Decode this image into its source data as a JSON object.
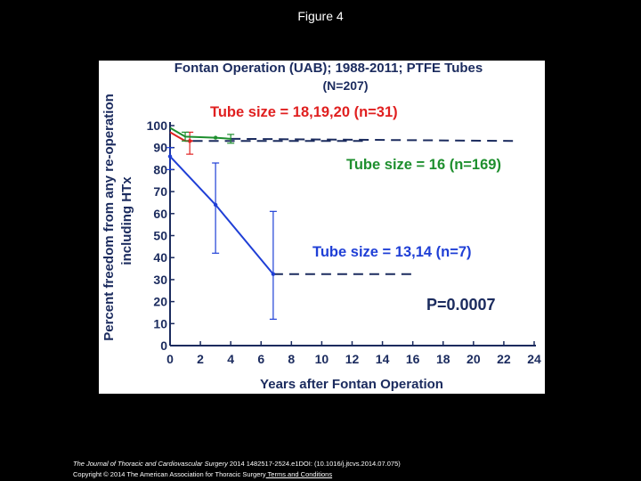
{
  "slide": {
    "title": "Figure 4"
  },
  "chart_data": {
    "type": "line",
    "title": "Fontan Operation (UAB); 1988-2011;  PTFE Tubes",
    "subtitle": "(N=207)",
    "xlabel": "Years after Fontan Operation",
    "ylabel_line1": "Percent freedom from any re-operation",
    "ylabel_line2": "including HTx",
    "xlim": [
      0,
      24
    ],
    "ylim": [
      0,
      100
    ],
    "xticks": [
      "0",
      "2",
      "4",
      "6",
      "8",
      "10",
      "12",
      "14",
      "16",
      "18",
      "20",
      "22",
      "24"
    ],
    "yticks": [
      "0",
      "10",
      "20",
      "30",
      "40",
      "50",
      "60",
      "70",
      "80",
      "90",
      "100"
    ],
    "p_value": "P=0.0007",
    "series": [
      {
        "name": "Tube size = 18,19,20 (n=31)",
        "color": "#e02020",
        "curve": [
          [
            0,
            97
          ],
          [
            0.5,
            95
          ],
          [
            1,
            93
          ],
          [
            1.5,
            93
          ]
        ],
        "points": [
          [
            1.3,
            93
          ]
        ],
        "error_bars": [
          [
            1.3,
            87,
            97
          ]
        ],
        "extension": [
          [
            1.5,
            93
          ],
          [
            13,
            93
          ]
        ]
      },
      {
        "name": "Tube size = 16 (n=169)",
        "color": "#1e8f2e",
        "curve": [
          [
            0,
            99
          ],
          [
            1,
            95
          ],
          [
            3,
            94.5
          ],
          [
            4,
            94
          ]
        ],
        "points": [
          [
            3,
            94.5
          ]
        ],
        "error_bars": [
          [
            1,
            93,
            97
          ],
          [
            4,
            92,
            96
          ]
        ],
        "extension": [
          [
            4,
            94
          ],
          [
            23,
            93
          ]
        ]
      },
      {
        "name": "Tube size = 13,14 (n=7)",
        "color": "#1f3fd6",
        "curve": [
          [
            0,
            86
          ],
          [
            3,
            64
          ],
          [
            6.8,
            32.5
          ]
        ],
        "points": [
          [
            0,
            86
          ],
          [
            3,
            64
          ],
          [
            6.8,
            32.5
          ]
        ],
        "error_bars": [
          [
            0,
            80,
            90
          ],
          [
            3,
            42,
            83
          ],
          [
            6.8,
            12,
            61
          ]
        ],
        "extension": [
          [
            6.8,
            32.5
          ],
          [
            16,
            32.5
          ]
        ]
      }
    ]
  },
  "caption": {
    "journal_name": "The Journal of Thoracic and Cardiovascular Surgery",
    "journal_rest": " 2014 1482517-2524.e1DOI: (10.1016/j.jtcvs.2014.07.075)",
    "copyright": "Copyright © 2014 The American Association for Thoracic Surgery",
    "terms_link": " Terms and Conditions"
  }
}
